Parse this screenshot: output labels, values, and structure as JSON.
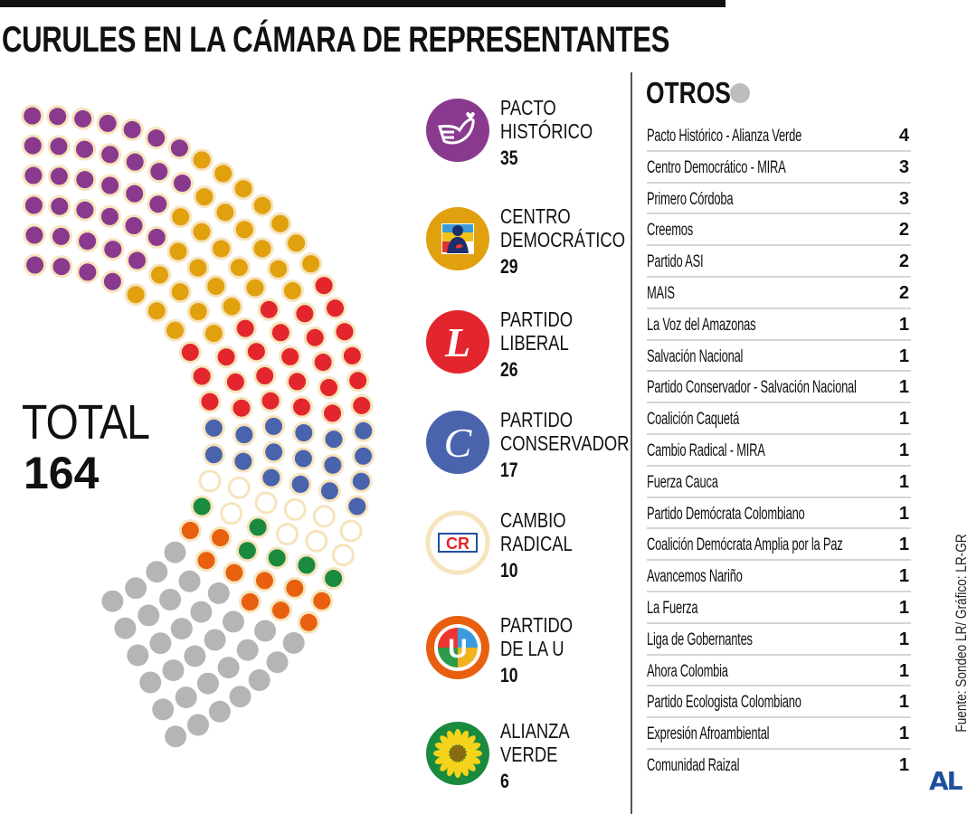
{
  "title": "CURULES EN LA CÁMARA DE REPRESENTANTES",
  "total": {
    "label": "TOTAL",
    "value": "164"
  },
  "colors": {
    "ring": "#f6e4bd",
    "otros": "#b5b5b5"
  },
  "parties": [
    {
      "name": "PACTO HISTÓRICO",
      "lines": [
        "PACTO",
        "HISTÓRICO"
      ],
      "seats": 35,
      "count": "35",
      "color": "#8a3a8e",
      "logo": "dove-icon"
    },
    {
      "name": "CENTRO DEMOCRÁTICO",
      "lines": [
        "CENTRO",
        "DEMOCRÁTICO"
      ],
      "seats": 29,
      "count": "29",
      "color": "#e1a00e",
      "logo": "silhouette-icon"
    },
    {
      "name": "PARTIDO LIBERAL",
      "lines": [
        "PARTIDO",
        "LIBERAL"
      ],
      "seats": 26,
      "count": "26",
      "color": "#e3262d",
      "logo": "liberal-l-icon",
      "logo_text": "L"
    },
    {
      "name": "PARTIDO CONSERVADOR",
      "lines": [
        "PARTIDO",
        "CONSERVADOR"
      ],
      "seats": 17,
      "count": "17",
      "color": "#4a63ad",
      "logo": "conservador-c-icon",
      "logo_text": "C"
    },
    {
      "name": "CAMBIO RADICAL",
      "lines": [
        "CAMBIO",
        "RADICAL"
      ],
      "seats": 10,
      "count": "10",
      "color": "#ffffff",
      "logo": "cambio-radical-icon",
      "logo_text": "CR"
    },
    {
      "name": "ALIANZA VERDE",
      "lines": [
        "ALIANZA",
        "VERDE"
      ],
      "seats": 6,
      "count": "6",
      "color": "#1a8a3e",
      "logo": "sunflower-icon"
    },
    {
      "name": "PARTIDO DE LA U",
      "lines": [
        "PARTIDO",
        "DE LA U"
      ],
      "seats": 10,
      "count": "10",
      "color": "#e8600f",
      "logo": "partido-u-icon",
      "logo_text": "U"
    }
  ],
  "legend_order": [
    0,
    1,
    2,
    3,
    4,
    6,
    5
  ],
  "otros": {
    "title": "OTROS",
    "seats": 31,
    "items": [
      {
        "name": "Pacto Histórico - Alianza Verde",
        "count": "4"
      },
      {
        "name": "Centro Democrático - MIRA",
        "count": "3"
      },
      {
        "name": "Primero Córdoba",
        "count": "3"
      },
      {
        "name": "Creemos",
        "count": "2"
      },
      {
        "name": "Partido ASI",
        "count": "2"
      },
      {
        "name": "MAIS",
        "count": "2"
      },
      {
        "name": "La Voz del Amazonas",
        "count": "1"
      },
      {
        "name": "Salvación Nacional",
        "count": "1"
      },
      {
        "name": "Partido Conservador - Salvación Nacional",
        "count": "1"
      },
      {
        "name": "Coalición Caquetá",
        "count": "1"
      },
      {
        "name": "Cambio Radical - MIRA",
        "count": "1"
      },
      {
        "name": "Fuerza Cauca",
        "count": "1"
      },
      {
        "name": "Partido Demócrata Colombiano",
        "count": "1"
      },
      {
        "name": "Coalición Demócrata Amplia por la Paz",
        "count": "1"
      },
      {
        "name": "Avancemos Nariño",
        "count": "1"
      },
      {
        "name": "La Fuerza",
        "count": "1"
      },
      {
        "name": "Liga de Gobernantes",
        "count": "1"
      },
      {
        "name": "Ahora Colombia",
        "count": "1"
      },
      {
        "name": "Partido Ecologista Colombiano",
        "count": "1"
      },
      {
        "name": "Expresión Afroambiental",
        "count": "1"
      },
      {
        "name": "Comunidad Raizal",
        "count": "1"
      }
    ]
  },
  "source": "Fuente: Sondeo LR/ Gráfico: LR-GR",
  "brand": "AL",
  "chart_data": {
    "type": "pie",
    "title": "CURULES EN LA CÁMARA DE REPRESENTANTES",
    "categories": [
      "Pacto Histórico",
      "Centro Democrático",
      "Partido Liberal",
      "Partido Conservador",
      "Cambio Radical",
      "Alianza Verde",
      "Partido de la U",
      "Otros"
    ],
    "values": [
      35,
      29,
      26,
      17,
      10,
      6,
      10,
      31
    ],
    "total": 164
  }
}
